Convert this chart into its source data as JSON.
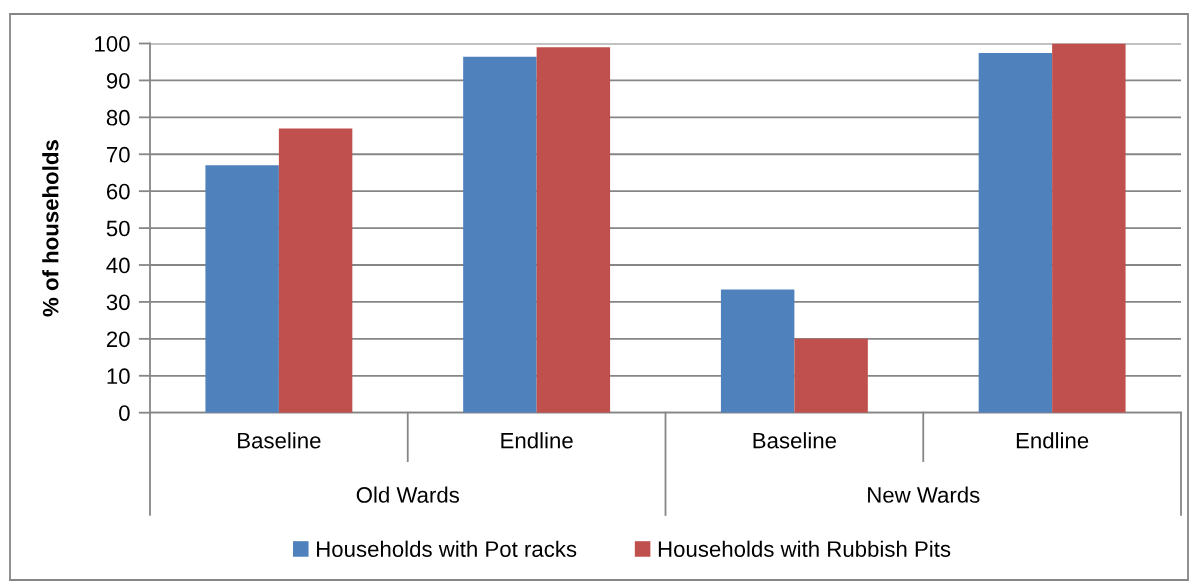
{
  "chart_data": {
    "type": "bar",
    "ylabel": "% of households",
    "categories": [
      "Baseline",
      "Endline",
      "Baseline",
      "Endline"
    ],
    "annotations": [
      "Old Wards",
      "New Wards"
    ],
    "series": [
      {
        "name": "Households with Pot racks",
        "color": "#4f81bd",
        "values": [
          67,
          96.4,
          33.4,
          97.4
        ]
      },
      {
        "name": "Households with Rubbish Pits",
        "color": "#c0504d",
        "values": [
          77,
          99,
          20,
          100
        ]
      }
    ],
    "ylim": [
      0,
      100
    ],
    "yticks": [
      0,
      10,
      20,
      30,
      40,
      50,
      60,
      70,
      80,
      90,
      100
    ],
    "grid": "y",
    "legend": "bottom"
  }
}
